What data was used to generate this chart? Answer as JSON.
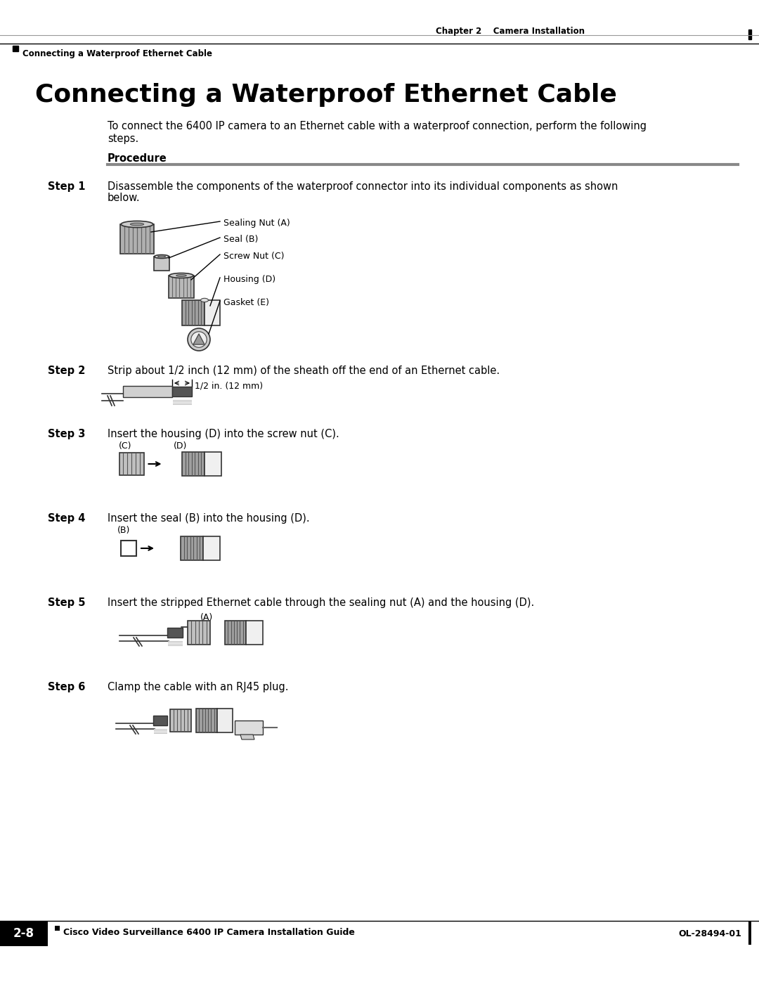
{
  "page_title": "Connecting a Waterproof Ethernet Cable",
  "header_right": "Chapter 2    Camera Installation",
  "header_left_bullet": "Connecting a Waterproof Ethernet Cable",
  "footer_left_box": "2-8",
  "footer_center": "Cisco Video Surveillance 6400 IP Camera Installation Guide",
  "footer_right": "OL-28494-01",
  "intro_text_line1": "To connect the 6400 IP camera to an Ethernet cable with a waterproof connection, perform the following",
  "intro_text_line2": "steps.",
  "procedure_label": "Procedure",
  "steps": [
    {
      "label": "Step 1",
      "text_line1": "Disassemble the components of the waterproof connector into its individual components as shown",
      "text_line2": "below."
    },
    {
      "label": "Step 2",
      "text_line1": "Strip about 1/2 inch (12 mm) of the sheath off the end of an Ethernet cable.",
      "text_line2": ""
    },
    {
      "label": "Step 3",
      "text_line1": "Insert the housing (D) into the screw nut (C).",
      "text_line2": ""
    },
    {
      "label": "Step 4",
      "text_line1": "Insert the seal (B) into the housing (D).",
      "text_line2": ""
    },
    {
      "label": "Step 5",
      "text_line1": "Insert the stripped Ethernet cable through the sealing nut (A) and the housing (D).",
      "text_line2": ""
    },
    {
      "label": "Step 6",
      "text_line1": "Clamp the cable with an RJ45 plug.",
      "text_line2": ""
    }
  ],
  "step1_labels": [
    "Sealing Nut (A)",
    "Seal (B)",
    "Screw Nut (C)",
    "Housing (D)",
    "Gasket (E)"
  ],
  "step2_annotation": "1/2 in. (12 mm)",
  "step3_labels": [
    "(C)",
    "(D)"
  ],
  "step4_label": "(B)",
  "step5_label": "(A)",
  "bg_color": "#ffffff",
  "gray_light": "#cccccc",
  "gray_med": "#999999",
  "gray_dark": "#555555",
  "black": "#000000",
  "divider_color": "#888888",
  "title_fontsize": 26,
  "body_fontsize": 10.5,
  "step_label_fontsize": 10.5,
  "header_fontsize": 8.5,
  "footer_fontsize": 9,
  "small_fontsize": 9
}
